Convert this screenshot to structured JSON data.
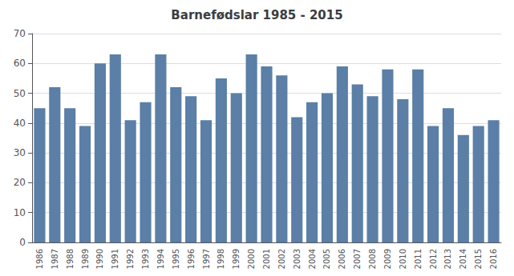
{
  "chart_data": {
    "type": "bar",
    "title": "Barnefødslar 1985 - 2015",
    "categories": [
      "1986",
      "1987",
      "1988",
      "1989",
      "1990",
      "1991",
      "1992",
      "1993",
      "1994",
      "1995",
      "1996",
      "1997",
      "1998",
      "1999",
      "2000",
      "2001",
      "2002",
      "2003",
      "2004",
      "2005",
      "2006",
      "2007",
      "2008",
      "2009",
      "2010",
      "2011",
      "2012",
      "2013",
      "2014",
      "2015",
      "2016"
    ],
    "values": [
      45,
      52,
      45,
      39,
      60,
      63,
      41,
      47,
      63,
      52,
      49,
      41,
      55,
      50,
      63,
      59,
      56,
      42,
      47,
      50,
      59,
      53,
      49,
      58,
      48,
      58,
      39,
      45,
      36,
      39,
      41
    ],
    "color": "#5B7FA6",
    "ylim": [
      0,
      70
    ],
    "yticks": [
      0,
      10,
      20,
      30,
      40,
      50,
      60,
      70
    ],
    "grid": true
  }
}
